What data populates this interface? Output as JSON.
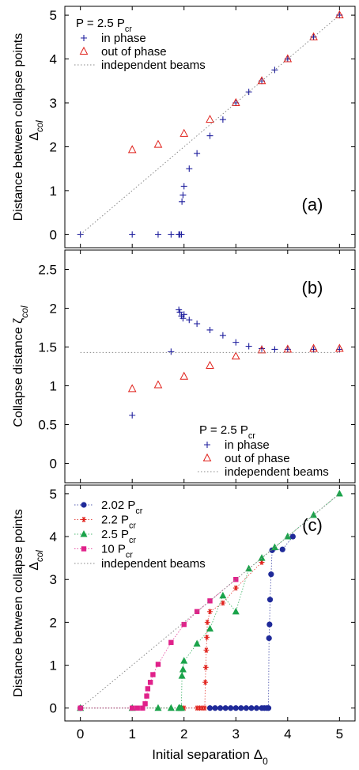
{
  "colors": {
    "in_phase": "#1f1f9e",
    "out_of_phase": "#e0211b",
    "independent": "#888888",
    "series_202": "#1f2a99",
    "series_22": "#e0211b",
    "series_25": "#1aa34a",
    "series_10": "#e0218a"
  },
  "icons": {
    "in_phase": "plus-marker",
    "out_of_phase": "open-triangle-marker",
    "series_202": "filled-circle-marker",
    "series_22": "asterisk-marker",
    "series_25": "filled-triangle-marker",
    "series_10": "filled-square-marker"
  },
  "chart_data": [
    {
      "type": "scatter",
      "panel_label": "(a)",
      "ylabel": "Distance between collapse points",
      "ylabel_symbol": "Δcol",
      "xlim": [
        -0.3,
        5.3
      ],
      "ylim": [
        -0.3,
        5.2
      ],
      "yticks": [
        "0",
        "1",
        "2",
        "3",
        "4",
        "5"
      ],
      "legend_position": "top-left",
      "legend_title": "P = 2.5 Pcr",
      "series": [
        {
          "name": "in phase",
          "marker": "plus",
          "x": [
            0,
            1.0,
            1.5,
            1.75,
            1.9,
            1.92,
            1.95,
            1.96,
            1.98,
            2.0,
            2.1,
            2.25,
            2.5,
            2.75,
            3.0,
            3.25,
            3.5,
            3.75,
            4.0,
            4.5,
            5.0
          ],
          "y": [
            0,
            0,
            0,
            0,
            0,
            0,
            0,
            0.75,
            0.9,
            1.1,
            1.5,
            1.85,
            2.25,
            2.62,
            3.0,
            3.25,
            3.5,
            3.75,
            4.0,
            4.5,
            5.0
          ]
        },
        {
          "name": "out of phase",
          "marker": "triangle-open",
          "x": [
            1.0,
            1.5,
            2.0,
            2.5,
            3.0,
            3.5,
            4.0,
            4.5,
            5.0
          ],
          "y": [
            1.93,
            2.05,
            2.3,
            2.62,
            3.0,
            3.5,
            4.0,
            4.5,
            5.0
          ]
        },
        {
          "name": "independent beams",
          "marker": "dotted-line",
          "x": [
            0,
            5
          ],
          "y": [
            0,
            5
          ]
        }
      ]
    },
    {
      "type": "scatter",
      "panel_label": "(b)",
      "ylabel": "Collapse distance",
      "ylabel_symbol": "ζcol",
      "xlim": [
        -0.3,
        5.3
      ],
      "ylim": [
        -0.25,
        2.75
      ],
      "yticks": [
        "0",
        "0.5",
        "1",
        "1.5",
        "2",
        "2.5"
      ],
      "legend_position": "lower-right",
      "legend_title": "P = 2.5 Pcr",
      "series": [
        {
          "name": "in phase",
          "marker": "plus",
          "x": [
            1.0,
            1.75,
            1.9,
            1.92,
            1.95,
            1.98,
            2.0,
            2.1,
            2.25,
            2.5,
            2.75,
            3.0,
            3.25,
            3.5,
            3.75,
            4.0,
            4.5,
            5.0
          ],
          "y": [
            0.62,
            1.44,
            1.98,
            1.95,
            1.9,
            1.87,
            1.92,
            1.85,
            1.8,
            1.72,
            1.65,
            1.56,
            1.51,
            1.48,
            1.47,
            1.47,
            1.47,
            1.47
          ]
        },
        {
          "name": "out of phase",
          "marker": "triangle-open",
          "x": [
            1.0,
            1.5,
            2.0,
            2.5,
            3.0,
            3.5,
            4.0,
            4.5,
            5.0
          ],
          "y": [
            0.96,
            1.01,
            1.12,
            1.26,
            1.38,
            1.46,
            1.47,
            1.48,
            1.48
          ]
        },
        {
          "name": "independent beams",
          "marker": "dotted-line",
          "x": [
            0,
            5
          ],
          "y": [
            1.43,
            1.43
          ]
        }
      ]
    },
    {
      "type": "scatter",
      "panel_label": "(c)",
      "xlabel": "Initial separation Δ0",
      "ylabel": "Distance between collapse points",
      "ylabel_symbol": "Δcol",
      "xlim": [
        -0.3,
        5.3
      ],
      "ylim": [
        -0.3,
        5.2
      ],
      "xticks": [
        "0",
        "1",
        "2",
        "3",
        "4",
        "5"
      ],
      "yticks": [
        "0",
        "1",
        "2",
        "3",
        "4",
        "5"
      ],
      "legend_position": "top-left",
      "series": [
        {
          "name": "2.02 Pcr",
          "marker": "circle",
          "x": [
            0,
            2.5,
            2.6,
            2.7,
            2.8,
            2.9,
            3.0,
            3.1,
            3.2,
            3.3,
            3.4,
            3.5,
            3.55,
            3.6,
            3.63,
            3.64,
            3.65,
            3.66,
            3.68,
            3.7,
            3.9,
            4.1
          ],
          "y": [
            0,
            0,
            0,
            0,
            0,
            0,
            0,
            0,
            0,
            0,
            0,
            0,
            0,
            0,
            0,
            1.63,
            1.95,
            2.53,
            3.12,
            3.68,
            3.7,
            4.0
          ]
        },
        {
          "name": "2.2 Pcr",
          "marker": "asterisk",
          "x": [
            0,
            1.0,
            2.0,
            2.25,
            2.3,
            2.35,
            2.4,
            2.41,
            2.42,
            2.43,
            2.44,
            2.45,
            2.5,
            2.75,
            3.0,
            3.5
          ],
          "y": [
            0,
            0,
            0,
            0,
            0,
            0,
            0,
            0.6,
            0.95,
            1.35,
            1.65,
            2.0,
            2.25,
            2.45,
            2.8,
            3.4
          ]
        },
        {
          "name": "2.5 Pcr",
          "marker": "triangle",
          "x": [
            0,
            1.0,
            1.5,
            1.75,
            1.9,
            1.92,
            1.95,
            1.96,
            1.98,
            2.0,
            2.25,
            2.5,
            2.75,
            3.0,
            3.25,
            3.5,
            3.75,
            4.0,
            4.5,
            5.0
          ],
          "y": [
            0,
            0,
            0,
            0,
            0,
            0,
            0,
            0.75,
            0.9,
            1.1,
            1.5,
            1.85,
            2.62,
            2.25,
            3.25,
            3.5,
            3.75,
            4.0,
            4.5,
            5.0
          ]
        },
        {
          "name": "10 Pcr",
          "marker": "square",
          "x": [
            0,
            1.0,
            1.1,
            1.2,
            1.25,
            1.28,
            1.3,
            1.35,
            1.4,
            1.5,
            1.75,
            2.0,
            2.25,
            2.5,
            3.0
          ],
          "y": [
            0,
            0,
            0,
            0,
            0.1,
            0.28,
            0.45,
            0.6,
            0.78,
            1.02,
            1.53,
            1.95,
            2.25,
            2.5,
            3.0
          ]
        },
        {
          "name": "independent beams",
          "marker": "dotted-line",
          "x": [
            0,
            5
          ],
          "y": [
            0,
            5
          ]
        }
      ]
    }
  ]
}
